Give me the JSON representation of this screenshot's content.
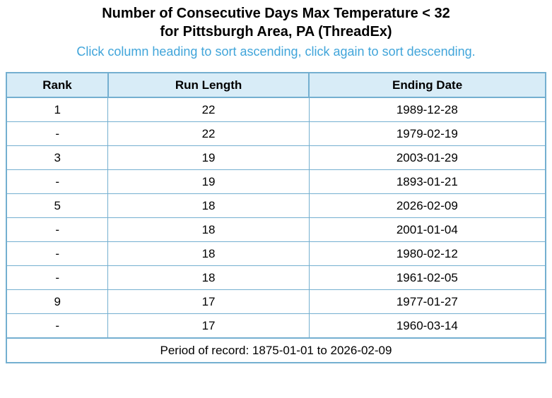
{
  "page_title": {
    "line1": "Number of Consecutive Days Max Temperature < 32",
    "line2": "for Pittsburgh Area, PA (ThreadEx)"
  },
  "sort_hint": "Click column heading to sort ascending, click again to sort descending.",
  "colors": {
    "header_bg": "#d8ecf7",
    "table_border": "#74afd0",
    "hint_text": "#41a5da",
    "body_text": "#000000"
  },
  "chart_data": {
    "type": "table",
    "title": "Number of Consecutive Days Max Temperature < 32 for Pittsburgh Area, PA (ThreadEx)",
    "columns": [
      "Rank",
      "Run Length",
      "Ending Date"
    ],
    "rows": [
      [
        "1",
        "22",
        "1989-12-28"
      ],
      [
        "-",
        "22",
        "1979-02-19"
      ],
      [
        "3",
        "19",
        "2003-01-29"
      ],
      [
        "-",
        "19",
        "1893-01-21"
      ],
      [
        "5",
        "18",
        "2026-02-09"
      ],
      [
        "-",
        "18",
        "2001-01-04"
      ],
      [
        "-",
        "18",
        "1980-02-12"
      ],
      [
        "-",
        "18",
        "1961-02-05"
      ],
      [
        "9",
        "17",
        "1977-01-27"
      ],
      [
        "-",
        "17",
        "1960-03-14"
      ]
    ],
    "footer": "Period of record: 1875-01-01 to 2026-02-09"
  }
}
